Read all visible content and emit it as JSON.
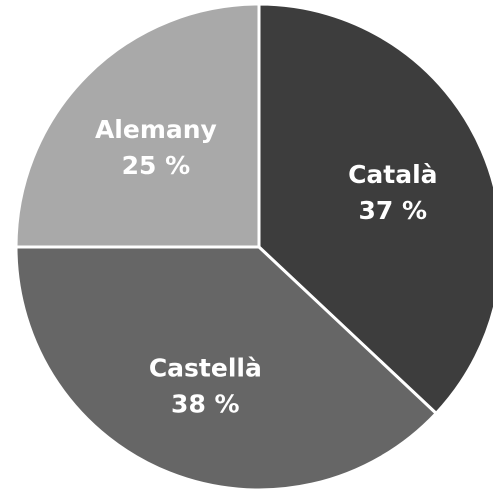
{
  "chart_data": {
    "type": "pie",
    "title": "",
    "start_angle_deg": 0,
    "direction": "clockwise",
    "slices": [
      {
        "label": "Català",
        "value": 37,
        "value_label": "37 %",
        "color": "#3d3d3d"
      },
      {
        "label": "Castellà",
        "value": 38,
        "value_label": "38 %",
        "color": "#666666"
      },
      {
        "label": "Alemany",
        "value": 25,
        "value_label": "25 %",
        "color": "#a9a9a9"
      }
    ]
  }
}
